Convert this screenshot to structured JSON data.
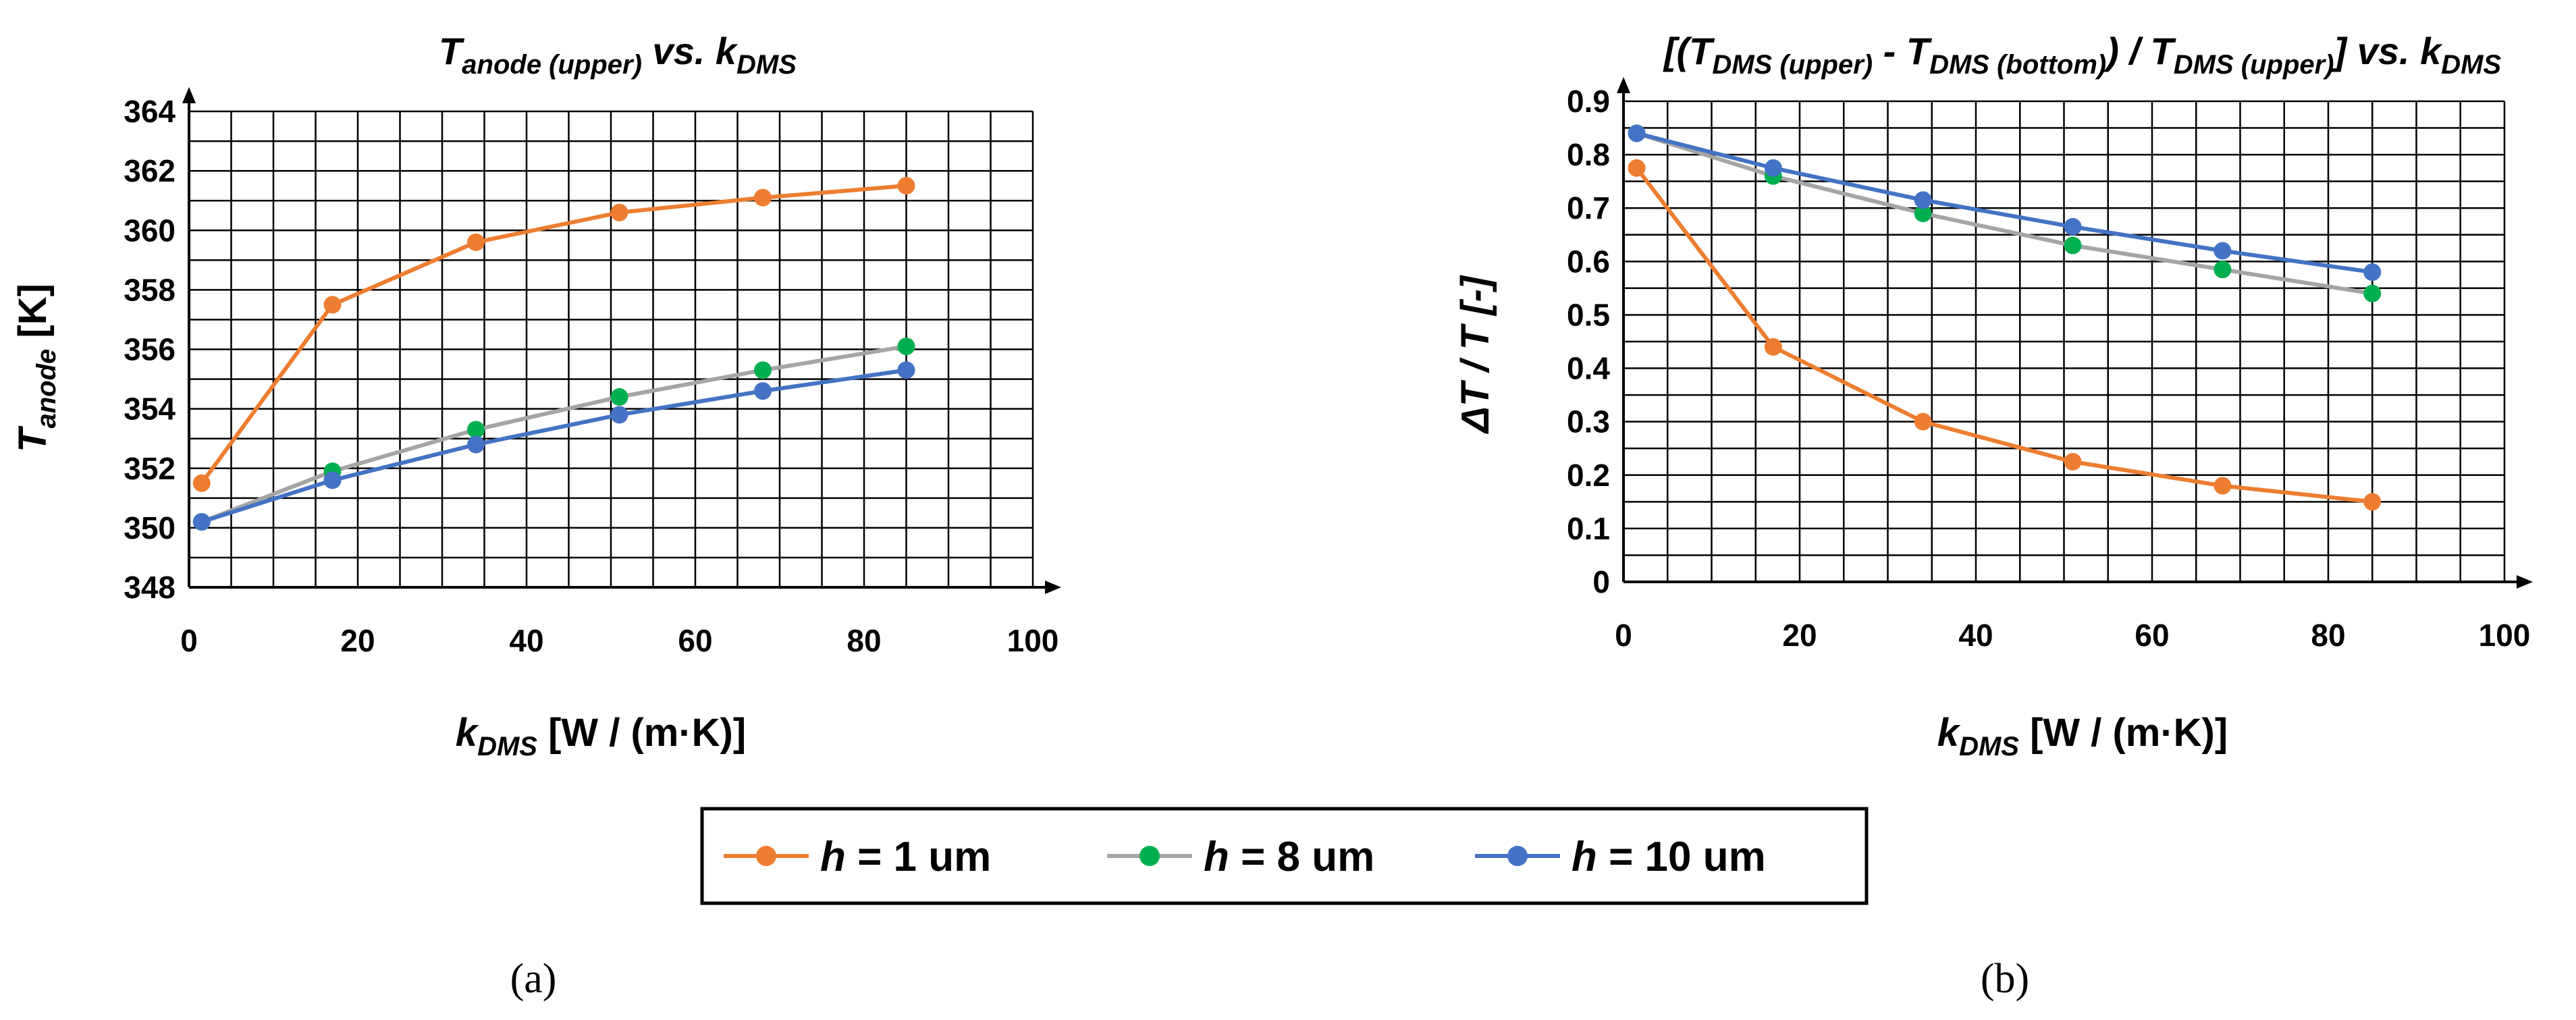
{
  "chart_data": [
    {
      "id": "a",
      "type": "line",
      "title": {
        "main": "T",
        "sub": "anode (upper)",
        "rest": " vs. k",
        "sub2": "DMS"
      },
      "xlabel": {
        "main": "k",
        "sub": "DMS",
        "rest": " [W / (m·K)]"
      },
      "ylabel": {
        "main": "T",
        "sub": "anode",
        "rest": " [K]"
      },
      "xlim": [
        0,
        100
      ],
      "ylim": [
        348,
        364
      ],
      "xticks": [
        0,
        20,
        40,
        60,
        80,
        100
      ],
      "yticks": [
        348,
        350,
        352,
        354,
        356,
        358,
        360,
        362,
        364
      ],
      "ytick_labels": [
        "348",
        "350",
        "352",
        "354",
        "356",
        "358",
        "360",
        "362",
        "364"
      ],
      "x": [
        1.5,
        17,
        34,
        51,
        68,
        85
      ],
      "series": [
        {
          "name": "h = 1 um",
          "values": [
            351.5,
            357.5,
            359.6,
            360.6,
            361.1,
            361.5
          ]
        },
        {
          "name": "h = 8 um",
          "values": [
            350.2,
            351.9,
            353.3,
            354.4,
            355.3,
            356.1
          ]
        },
        {
          "name": "h = 10 um",
          "values": [
            350.2,
            351.6,
            352.8,
            353.8,
            354.6,
            355.3
          ]
        }
      ],
      "caption": "(a)"
    },
    {
      "id": "b",
      "type": "line",
      "title": {
        "parts": [
          {
            "t": "[(T",
            "s": false
          },
          {
            "t": "DMS (upper)",
            "s": true
          },
          {
            "t": " - T",
            "s": false
          },
          {
            "t": "DMS (bottom)",
            "s": true
          },
          {
            "t": ") / T",
            "s": false
          },
          {
            "t": "DMS (upper)",
            "s": true
          },
          {
            "t": "] vs. k",
            "s": false
          },
          {
            "t": "DMS",
            "s": true
          }
        ]
      },
      "xlabel": {
        "main": "k",
        "sub": "DMS",
        "rest": " [W / (m·K)]"
      },
      "ylabel": {
        "main": "ΔT / T [-]"
      },
      "xlim": [
        0,
        100
      ],
      "ylim": [
        0,
        0.9
      ],
      "xticks": [
        0,
        20,
        40,
        60,
        80,
        100
      ],
      "yticks": [
        0,
        0.1,
        0.2,
        0.3,
        0.4,
        0.5,
        0.6,
        0.7,
        0.8,
        0.9
      ],
      "ytick_labels": [
        "0",
        "0.1",
        "0.2",
        "0.3",
        "0.4",
        "0.5",
        "0.6",
        "0.7",
        "0.8",
        "0.9"
      ],
      "x": [
        1.5,
        17,
        34,
        51,
        68,
        85
      ],
      "series": [
        {
          "name": "h = 1 um",
          "values": [
            0.775,
            0.44,
            0.3,
            0.225,
            0.18,
            0.15
          ]
        },
        {
          "name": "h = 8 um",
          "values": [
            0.84,
            0.76,
            0.69,
            0.63,
            0.585,
            0.54
          ]
        },
        {
          "name": "h = 10 um",
          "values": [
            0.84,
            0.775,
            0.715,
            0.665,
            0.62,
            0.58
          ]
        }
      ],
      "caption": "(b)"
    }
  ],
  "legend": [
    {
      "italic": "h",
      "text": " = 1 um",
      "line_color": "#ED7D31",
      "marker_color": "#ED7D31"
    },
    {
      "italic": "h",
      "text": " = 8 um",
      "line_color": "#A5A5A5",
      "marker_color": "#00B050"
    },
    {
      "italic": "h",
      "text": " = 10 um",
      "line_color": "#4472C4",
      "marker_color": "#4472C4"
    }
  ]
}
